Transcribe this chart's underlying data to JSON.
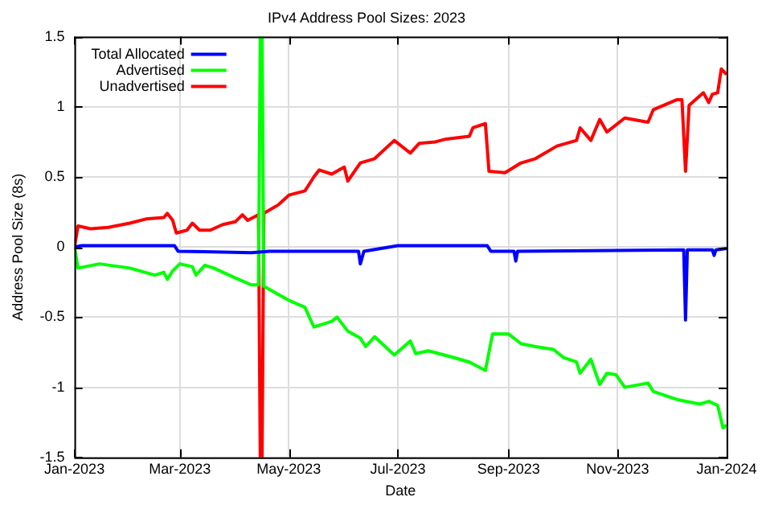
{
  "chart_data": {
    "type": "line",
    "title": "IPv4 Address Pool Sizes: 2023",
    "xlabel": "Date",
    "ylabel": "Address Pool Size (8s)",
    "xlim": [
      "2023-01-01",
      "2024-01-01"
    ],
    "xticks": [
      {
        "value": "2023-01-01",
        "label": "Jan-2023"
      },
      {
        "value": "2023-03-01",
        "label": "Mar-2023"
      },
      {
        "value": "2023-05-01",
        "label": "May-2023"
      },
      {
        "value": "2023-07-01",
        "label": "Jul-2023"
      },
      {
        "value": "2023-09-01",
        "label": "Sep-2023"
      },
      {
        "value": "2023-11-01",
        "label": "Nov-2023"
      },
      {
        "value": "2024-01-01",
        "label": "Jan-2024"
      }
    ],
    "ylim": [
      -1.5,
      1.5
    ],
    "yticks": [
      -1.5,
      -1,
      -0.5,
      0,
      0.5,
      1,
      1.5
    ],
    "grid": true,
    "legend": "top left",
    "marker": "none",
    "line_style": "solid",
    "series": [
      {
        "name": "Total Allocated",
        "color": "#0000ff",
        "x": [
          "2023-01-01",
          "2023-01-05",
          "2023-02-26",
          "2023-02-28",
          "2023-04-10",
          "2023-04-20",
          "2023-06-09",
          "2023-06-10",
          "2023-06-12",
          "2023-07-01",
          "2023-08-20",
          "2023-08-22",
          "2023-09-04",
          "2023-09-05",
          "2023-09-06",
          "2023-12-08",
          "2023-12-09",
          "2023-12-10",
          "2023-12-24",
          "2023-12-25",
          "2023-12-26",
          "2024-01-01"
        ],
        "values": [
          0,
          0.01,
          0.01,
          -0.03,
          -0.04,
          -0.03,
          -0.03,
          -0.12,
          -0.03,
          0.01,
          0.01,
          -0.03,
          -0.03,
          -0.1,
          -0.03,
          -0.02,
          -0.52,
          -0.02,
          -0.02,
          -0.06,
          -0.02,
          -0.01
        ]
      },
      {
        "name": "Advertised",
        "color": "#00ff00",
        "x": [
          "2023-01-01",
          "2023-01-03",
          "2023-01-15",
          "2023-02-01",
          "2023-02-15",
          "2023-02-20",
          "2023-02-22",
          "2023-02-25",
          "2023-03-01",
          "2023-03-08",
          "2023-03-10",
          "2023-03-15",
          "2023-03-20",
          "2023-04-01",
          "2023-04-10",
          "2023-04-14",
          "2023-04-15",
          "2023-04-16",
          "2023-04-17",
          "2023-05-01",
          "2023-05-10",
          "2023-05-15",
          "2023-05-25",
          "2023-05-28",
          "2023-06-03",
          "2023-06-10",
          "2023-06-13",
          "2023-06-18",
          "2023-06-29",
          "2023-07-08",
          "2023-07-11",
          "2023-07-18",
          "2023-07-30",
          "2023-08-10",
          "2023-08-19",
          "2023-08-23",
          "2023-09-01",
          "2023-09-08",
          "2023-09-16",
          "2023-09-26",
          "2023-10-02",
          "2023-10-09",
          "2023-10-11",
          "2023-10-17",
          "2023-10-22",
          "2023-10-26",
          "2023-10-31",
          "2023-11-05",
          "2023-11-18",
          "2023-11-21",
          "2023-12-05",
          "2023-12-17",
          "2023-12-22",
          "2023-12-27",
          "2023-12-30",
          "2024-01-01"
        ],
        "values": [
          0,
          -0.15,
          -0.12,
          -0.15,
          -0.2,
          -0.18,
          -0.23,
          -0.17,
          -0.12,
          -0.14,
          -0.2,
          -0.13,
          -0.15,
          -0.22,
          -0.27,
          -0.27,
          1.5,
          1.5,
          -0.28,
          -0.38,
          -0.43,
          -0.57,
          -0.53,
          -0.5,
          -0.6,
          -0.65,
          -0.71,
          -0.64,
          -0.77,
          -0.67,
          -0.76,
          -0.74,
          -0.78,
          -0.82,
          -0.88,
          -0.62,
          -0.62,
          -0.69,
          -0.71,
          -0.73,
          -0.79,
          -0.82,
          -0.9,
          -0.8,
          -0.98,
          -0.9,
          -0.91,
          -1,
          -0.97,
          -1.03,
          -1.09,
          -1.12,
          -1.1,
          -1.13,
          -1.29,
          -1.27
        ]
      },
      {
        "name": "Unadvertised",
        "color": "#ff0000",
        "x": [
          "2023-01-01",
          "2023-01-03",
          "2023-01-10",
          "2023-01-20",
          "2023-02-01",
          "2023-02-10",
          "2023-02-20",
          "2023-02-22",
          "2023-02-25",
          "2023-02-27",
          "2023-03-05",
          "2023-03-08",
          "2023-03-12",
          "2023-03-18",
          "2023-03-25",
          "2023-04-01",
          "2023-04-05",
          "2023-04-08",
          "2023-04-14",
          "2023-04-15",
          "2023-04-16",
          "2023-04-17",
          "2023-04-25",
          "2023-05-01",
          "2023-05-10",
          "2023-05-15",
          "2023-05-18",
          "2023-05-25",
          "2023-06-01",
          "2023-06-03",
          "2023-06-10",
          "2023-06-18",
          "2023-06-29",
          "2023-07-08",
          "2023-07-13",
          "2023-07-22",
          "2023-07-28",
          "2023-08-10",
          "2023-08-12",
          "2023-08-19",
          "2023-08-21",
          "2023-08-30",
          "2023-09-08",
          "2023-09-16",
          "2023-09-28",
          "2023-10-09",
          "2023-10-11",
          "2023-10-17",
          "2023-10-22",
          "2023-10-26",
          "2023-11-05",
          "2023-11-18",
          "2023-11-21",
          "2023-12-04",
          "2023-12-07",
          "2023-12-09",
          "2023-12-11",
          "2023-12-19",
          "2023-12-22",
          "2023-12-24",
          "2023-12-27",
          "2023-12-29",
          "2024-01-01"
        ],
        "values": [
          0,
          0.15,
          0.13,
          0.14,
          0.17,
          0.2,
          0.21,
          0.24,
          0.19,
          0.1,
          0.12,
          0.17,
          0.12,
          0.12,
          0.16,
          0.18,
          0.23,
          0.19,
          0.23,
          -1.5,
          -1.5,
          0.24,
          0.3,
          0.37,
          0.4,
          0.5,
          0.55,
          0.52,
          0.57,
          0.47,
          0.6,
          0.63,
          0.76,
          0.67,
          0.74,
          0.75,
          0.77,
          0.79,
          0.85,
          0.88,
          0.54,
          0.53,
          0.6,
          0.63,
          0.72,
          0.76,
          0.85,
          0.76,
          0.91,
          0.82,
          0.92,
          0.89,
          0.98,
          1.05,
          1.05,
          0.54,
          1.01,
          1.1,
          1.03,
          1.09,
          1.1,
          1.27,
          1.23
        ]
      }
    ]
  }
}
